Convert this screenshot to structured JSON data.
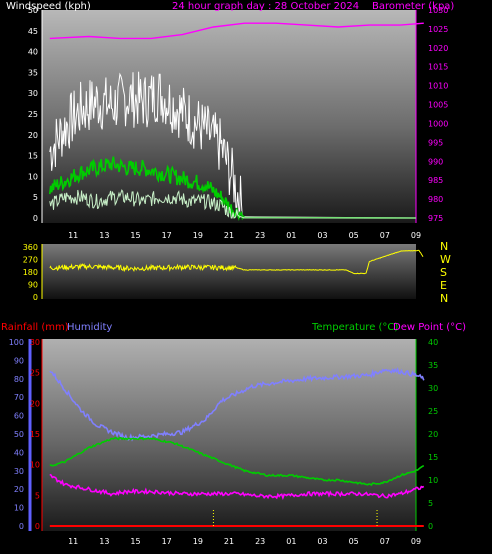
{
  "header": {
    "windspeed_label": "Windspeed (kph)",
    "title": "24 hour graph day : 28 October 2024",
    "barometer_label": "Barometer (kpa)"
  },
  "lower_header": {
    "rainfall_label": "Rainfall (mm)",
    "humidity_label": "Humidity",
    "temperature_label": "Temperature (°C)",
    "dewpoint_label": "Dew Point (°C)"
  },
  "colors": {
    "windspeed_axis": "#ffffff",
    "barometer": "#ff00ff",
    "gust": "#ffffff",
    "avg_wind": "#00cc00",
    "light_wind": "#c8f0c8",
    "direction": "#ffff00",
    "rainfall": "#ff0000",
    "humidity": "#8080ff",
    "temperature": "#00cc00",
    "dewpoint": "#ff00ff",
    "rain_marker": "#ffff00"
  },
  "x_ticks": [
    "11",
    "13",
    "15",
    "17",
    "19",
    "21",
    "23",
    "01",
    "03",
    "05",
    "07",
    "09"
  ],
  "x_ticks_lower": [
    "11",
    "13",
    "15",
    "17",
    "19",
    "21",
    "23",
    "01",
    "03",
    "05",
    "07",
    "09"
  ],
  "chart_data": [
    {
      "type": "line",
      "name": "wind-barometer",
      "left_axis": {
        "label": "Windspeed (kph)",
        "ylim": [
          0,
          50
        ],
        "ticks": [
          "0",
          "5",
          "10",
          "15",
          "20",
          "25",
          "30",
          "35",
          "40",
          "45",
          "50"
        ]
      },
      "right_axis": {
        "label": "Barometer (kpa)",
        "ylim": [
          975,
          1030
        ],
        "ticks": [
          "975",
          "980",
          "985",
          "990",
          "995",
          "1000",
          "1005",
          "1010",
          "1015",
          "1020",
          "1025",
          "1030"
        ]
      },
      "series": [
        {
          "name": "Barometer",
          "axis": "right",
          "x": [
            9.5,
            12,
            14,
            16,
            18,
            20,
            22,
            24,
            26,
            28,
            30,
            32,
            33.5
          ],
          "values": [
            1022.5,
            1023,
            1022.5,
            1022.5,
            1023.5,
            1025.5,
            1026.5,
            1026.5,
            1026,
            1025.5,
            1026,
            1026,
            1026.5
          ]
        },
        {
          "name": "Gust",
          "axis": "left",
          "x": [
            9.5,
            10.5,
            11.5,
            12.5,
            13.5,
            14.5,
            15.5,
            16.5,
            17.5,
            18.5,
            19.5,
            20.5,
            21.2,
            21.8,
            22
          ],
          "values": [
            16,
            22,
            26,
            28,
            27,
            29,
            28,
            30,
            27,
            24,
            21,
            17,
            10,
            3,
            0
          ]
        },
        {
          "name": "Average",
          "axis": "left",
          "x": [
            9.5,
            10.5,
            11.5,
            12.5,
            13.5,
            14.5,
            15.5,
            16.5,
            17.5,
            18.5,
            19.5,
            20.5,
            21.2,
            21.8,
            22
          ],
          "values": [
            7,
            9,
            11,
            12,
            13,
            12,
            12,
            11,
            10,
            9,
            8,
            5,
            2,
            1,
            0
          ]
        },
        {
          "name": "Light",
          "axis": "left",
          "x": [
            9.5,
            10.5,
            11.5,
            12.5,
            13.5,
            14.5,
            15.5,
            16.5,
            17.5,
            18.5,
            19.5,
            20.5,
            21.2,
            22
          ],
          "values": [
            3,
            5,
            5,
            4,
            5,
            5,
            4,
            5,
            5,
            4,
            4,
            3,
            1,
            0
          ]
        }
      ]
    },
    {
      "type": "line",
      "name": "wind-direction",
      "ylim": [
        0,
        360
      ],
      "ticks": [
        "0",
        "90",
        "180",
        "270",
        "360"
      ],
      "compass": [
        "N",
        "W",
        "S",
        "E",
        "N"
      ],
      "series": [
        {
          "name": "Direction",
          "x": [
            9.5,
            12,
            15,
            18,
            21.5,
            22,
            26,
            28.5,
            29,
            29.8,
            30,
            32,
            33.2,
            33.5
          ],
          "values": [
            210,
            220,
            205,
            215,
            210,
            195,
            195,
            195,
            170,
            170,
            255,
            330,
            335,
            280
          ]
        }
      ]
    },
    {
      "type": "line",
      "name": "rain-humidity-temperature",
      "humidity_axis": {
        "ylim": [
          0,
          100
        ],
        "ticks": [
          "0",
          "10",
          "20",
          "30",
          "40",
          "50",
          "60",
          "70",
          "80",
          "90",
          "100"
        ]
      },
      "rainfall_axis": {
        "ylim": [
          0,
          30
        ],
        "ticks": [
          "0",
          "5",
          "10",
          "15",
          "20",
          "25",
          "30"
        ]
      },
      "temperature_axis": {
        "ylim": [
          0,
          40
        ],
        "ticks": [
          "0",
          "5",
          "10",
          "15",
          "20",
          "25",
          "30",
          "35",
          "40"
        ]
      },
      "series": [
        {
          "name": "Humidity",
          "axis": "humidity",
          "x": [
            9.5,
            10.5,
            11.5,
            12.5,
            13.5,
            14.5,
            16,
            18,
            19.5,
            20.5,
            21.5,
            22.5,
            24,
            26,
            28,
            30,
            31,
            32,
            33,
            33.5
          ],
          "values": [
            85,
            74,
            63,
            55,
            51,
            48,
            49,
            51,
            58,
            68,
            72,
            76,
            78,
            80,
            81,
            82,
            85,
            84,
            82,
            80
          ]
        },
        {
          "name": "Temperature",
          "axis": "temperature",
          "x": [
            9.5,
            10.5,
            12,
            13.5,
            14.5,
            16,
            17.5,
            19,
            20.5,
            22,
            23.5,
            25,
            27,
            28,
            29,
            30,
            31,
            32,
            33,
            33.5
          ],
          "values": [
            13,
            14,
            17,
            19,
            19,
            19,
            18,
            16,
            14,
            12,
            11,
            11,
            10,
            10,
            9.5,
            9,
            9.5,
            11,
            12,
            13
          ]
        },
        {
          "name": "Dew Point",
          "axis": "temperature",
          "x": [
            9.5,
            10.5,
            12,
            13.5,
            14.5,
            16,
            18,
            20,
            21.5,
            23,
            24.5,
            26,
            28,
            29.5,
            31,
            32,
            33,
            33.5
          ],
          "values": [
            11,
            9,
            8,
            7,
            7.5,
            7.5,
            7,
            7,
            7,
            6.5,
            6.5,
            7,
            7,
            7,
            6.5,
            7,
            8,
            8.5
          ]
        },
        {
          "name": "Rainfall",
          "axis": "rainfall",
          "x": [
            9.5,
            33.5
          ],
          "values": [
            0,
            0
          ]
        }
      ],
      "rain_markers_x": [
        20,
        30.5
      ]
    }
  ]
}
